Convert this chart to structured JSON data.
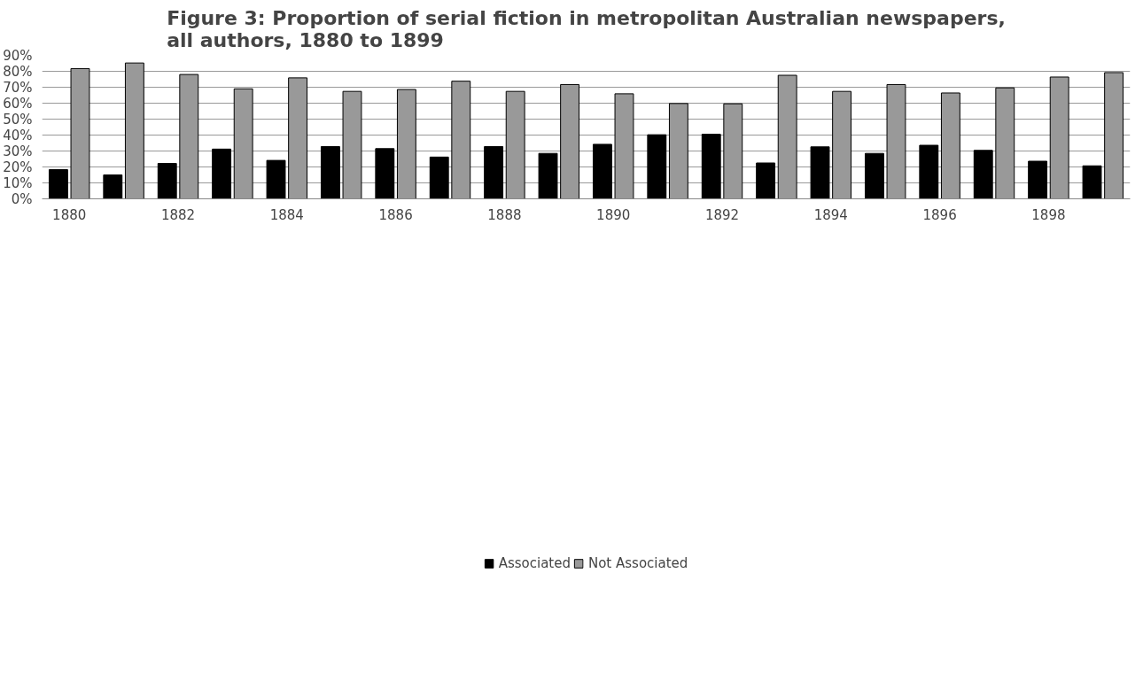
{
  "chart_data": {
    "type": "bar",
    "title": "Figure 3: Proportion of serial fiction in metropolitan Australian newspapers,\nall authors, 1880 to 1899",
    "categories": [
      "1880",
      null,
      "1882",
      null,
      "1884",
      null,
      "1886",
      null,
      "1888",
      null,
      "1890",
      null,
      "1892",
      null,
      "1894",
      null,
      "1896",
      null,
      "1898",
      null
    ],
    "series": [
      {
        "name": "Associated",
        "color": "#000000",
        "values": [
          18.3,
          15.0,
          22.2,
          31.2,
          24.1,
          32.8,
          31.5,
          26.2,
          32.8,
          28.5,
          34.2,
          40.2,
          40.5,
          22.5,
          32.6,
          28.5,
          33.6,
          30.4,
          23.6,
          20.7
        ]
      },
      {
        "name": "Not Associated",
        "color": "#999999",
        "values": [
          81.7,
          85.2,
          78.0,
          69.0,
          75.9,
          67.4,
          68.6,
          73.8,
          67.4,
          71.7,
          65.9,
          59.8,
          59.6,
          77.5,
          67.4,
          71.7,
          66.4,
          69.6,
          76.4,
          79.2
        ]
      }
    ],
    "ylim": [
      0,
      90
    ],
    "yticks": [
      {
        "value": 0,
        "label": "0%"
      },
      {
        "value": 10,
        "label": "10%"
      },
      {
        "value": 20,
        "label": "20%"
      },
      {
        "value": 30,
        "label": "30%"
      },
      {
        "value": 40,
        "label": "40%"
      },
      {
        "value": 50,
        "label": "50%"
      },
      {
        "value": 60,
        "label": "60%"
      },
      {
        "value": 70,
        "label": "70%"
      },
      {
        "value": 80,
        "label": "80%"
      },
      {
        "value": 90,
        "label": "90%"
      }
    ],
    "grid": "y",
    "legend": "bottom"
  }
}
